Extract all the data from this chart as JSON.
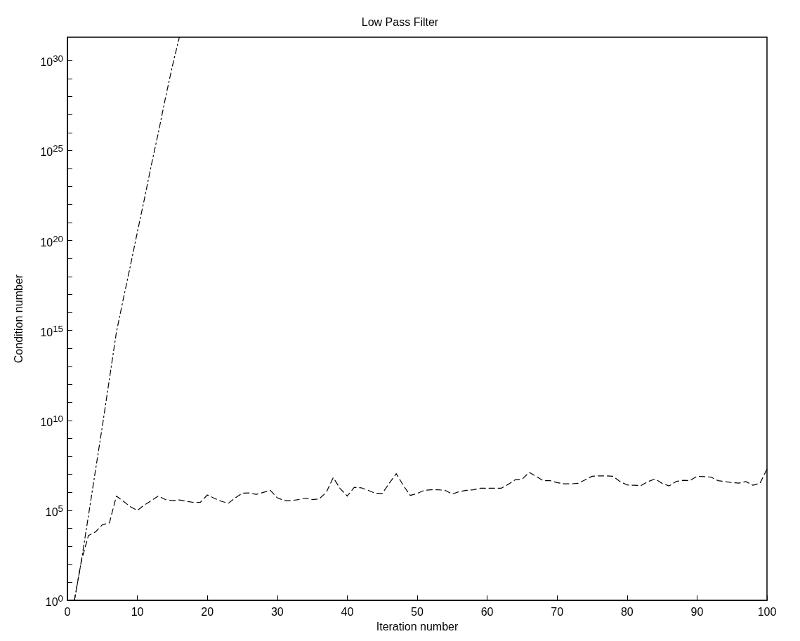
{
  "chart_data": {
    "type": "line",
    "title": "Low Pass Filter",
    "xlabel": "Iteration number",
    "ylabel": "Condition number",
    "log": "y",
    "grid": false,
    "marker": "none",
    "xlim": [
      0,
      100
    ],
    "xticks": [
      0,
      10,
      20,
      30,
      40,
      50,
      60,
      70,
      80,
      90,
      100
    ],
    "ylim": [
      1,
      2e+31
    ],
    "yticks": [
      {
        "value": 1,
        "label": "10$^{0}$"
      },
      {
        "value": 10,
        "label": null
      },
      {
        "value": 100,
        "label": null
      },
      {
        "value": 1000,
        "label": null
      },
      {
        "value": 10000,
        "label": null
      },
      {
        "value": 100000,
        "label": "10$^{5}$"
      },
      {
        "value": 1000000.0,
        "label": null
      },
      {
        "value": 10000000.0,
        "label": null
      },
      {
        "value": 100000000.0,
        "label": null
      },
      {
        "value": 1000000000.0,
        "label": null
      },
      {
        "value": 10000000000.0,
        "label": "10$^{10}$"
      },
      {
        "value": 100000000000.0,
        "label": null
      },
      {
        "value": 1000000000000.0,
        "label": null
      },
      {
        "value": 10000000000000.0,
        "label": null
      },
      {
        "value": 100000000000000.0,
        "label": null
      },
      {
        "value": 1000000000000000.0,
        "label": "10$^{15}$"
      },
      {
        "value": 1e+16,
        "label": null
      },
      {
        "value": 1e+17,
        "label": null
      },
      {
        "value": 1e+18,
        "label": null
      },
      {
        "value": 1e+19,
        "label": null
      },
      {
        "value": 1e+20,
        "label": "10$^{20}$"
      },
      {
        "value": 1e+21,
        "label": null
      },
      {
        "value": 1e+22,
        "label": null
      },
      {
        "value": 1e+23,
        "label": null
      },
      {
        "value": 1e+24,
        "label": null
      },
      {
        "value": 1e+25,
        "label": "10$^{25}$"
      },
      {
        "value": 1e+26,
        "label": null
      },
      {
        "value": 1e+27,
        "label": null
      },
      {
        "value": 1e+28,
        "label": null
      },
      {
        "value": 1e+29,
        "label": null
      },
      {
        "value": 1e+30,
        "label": "10$^{30}$"
      }
    ],
    "series": [
      {
        "color": "#000000",
        "line_style": "dashdot",
        "x": [
          1,
          2,
          3,
          4,
          5,
          6,
          7,
          8,
          9,
          10,
          11,
          12,
          13,
          14,
          15,
          16
        ],
        "values": [
          1,
          160,
          50000,
          16000000.0,
          5000000000.0,
          2000000000000.0,
          800000000000000.0,
          6e+16,
          4e+18,
          3e+20,
          2e+22,
          1.6e+24,
          1e+26,
          8e+27,
          5e+29,
          2e+31
        ]
      },
      {
        "color": "#000000",
        "line_style": "dashed",
        "x": [
          1,
          2,
          3,
          4,
          5,
          6,
          7,
          8,
          9,
          10,
          11,
          12,
          13,
          14,
          15,
          16,
          17,
          18,
          19,
          20,
          21,
          22,
          23,
          24,
          25,
          26,
          27,
          28,
          29,
          30,
          31,
          32,
          33,
          34,
          35,
          36,
          37,
          38,
          39,
          40,
          41,
          42,
          43,
          44,
          45,
          46,
          47,
          48,
          49,
          50,
          51,
          52,
          53,
          54,
          55,
          56,
          57,
          58,
          59,
          60,
          61,
          62,
          63,
          64,
          65,
          66,
          67,
          68,
          69,
          70,
          71,
          72,
          73,
          74,
          75,
          76,
          77,
          78,
          79,
          80,
          81,
          82,
          83,
          84,
          85,
          86,
          87,
          88,
          89,
          90,
          91,
          92,
          93,
          94,
          95,
          96,
          97,
          98,
          99,
          100
        ],
        "values": [
          1,
          160,
          4000,
          6300,
          16000,
          20000,
          630000,
          320000,
          160000,
          100000,
          200000,
          350000,
          630000,
          400000,
          350000,
          380000,
          320000,
          280000,
          280000,
          720000,
          470000,
          320000,
          250000,
          500000,
          910000,
          930000,
          780000,
          1000000,
          1300000,
          500000,
          350000,
          350000,
          400000,
          480000,
          400000,
          440000,
          1000000,
          6600000,
          1600000,
          630000,
          1900000,
          1800000,
          1300000,
          890000,
          870000,
          3200000,
          11000000,
          2500000,
          680000,
          870000,
          1300000,
          1400000,
          1400000,
          1300000,
          810000,
          1100000,
          1300000,
          1400000,
          1700000,
          1700000,
          1700000,
          1700000,
          2800000,
          5000000,
          5400000,
          13000000,
          7900000,
          4500000,
          4500000,
          3500000,
          3000000,
          3000000,
          3200000,
          5000000,
          7900000,
          8300000,
          8300000,
          7900000,
          4000000,
          2600000,
          2500000,
          2400000,
          4000000,
          5600000,
          3200000,
          2300000,
          4000000,
          4700000,
          4500000,
          7900000,
          7600000,
          7100000,
          4500000,
          4000000,
          3500000,
          3300000,
          4000000,
          2500000,
          3200000,
          20000000
        ]
      }
    ]
  }
}
